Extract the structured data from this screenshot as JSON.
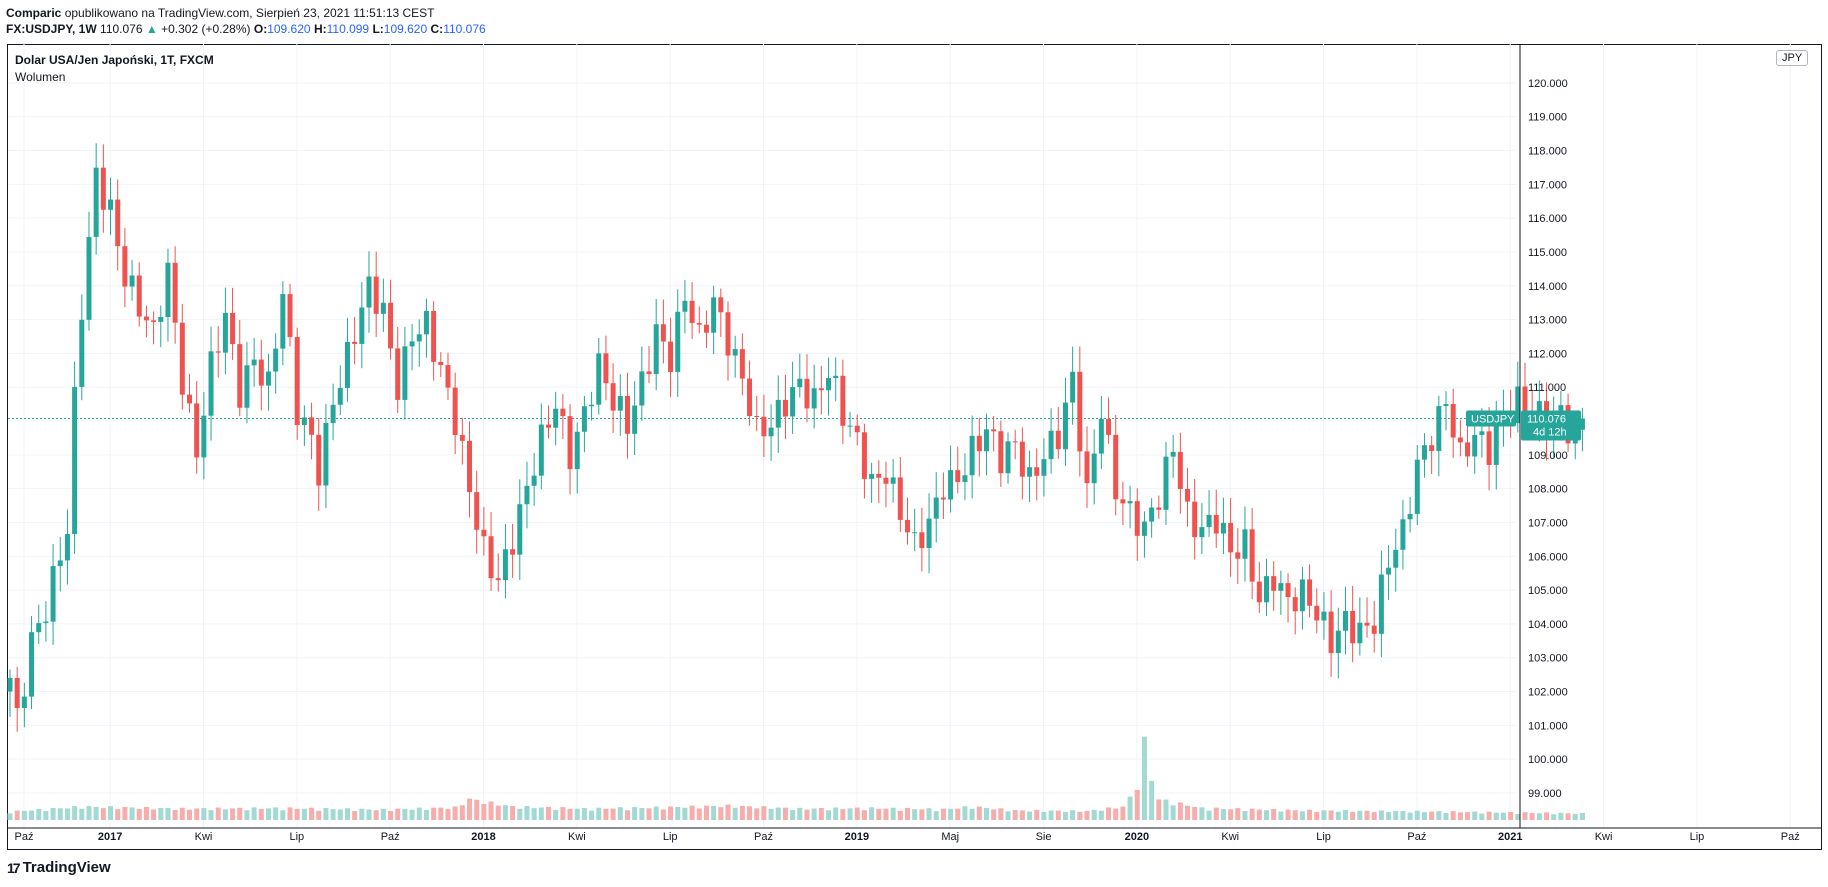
{
  "header": {
    "author": "Comparic",
    "published": "opublikowano na TradingView.com, Sierpień 23, 2021 11:51:13 CEST",
    "symbol": "FX:USDJPY, 1W",
    "last": "110.076",
    "change": "+0.302 (+0.28%)",
    "o_label": "O:",
    "o_value": "109.620",
    "h_label": "H:",
    "h_value": "110.099",
    "l_label": "L:",
    "l_value": "109.620",
    "c_label": "C:",
    "c_value": "110.076"
  },
  "legend": {
    "title": "Dolar USA/Jen Japoński, 1T, FXCM",
    "volume": "Wolumen"
  },
  "currency": "JPY",
  "price_tag": {
    "symbol": "USDJPY",
    "value": "110.076",
    "countdown": "4d 12h"
  },
  "footer": {
    "brand": "TradingView"
  },
  "colors": {
    "up": "#26a69a",
    "down": "#ef5350",
    "up_volume": "#a2d9d3",
    "down_volume": "#f7adab",
    "grid": "#f0f3fa"
  },
  "chart_data": {
    "type": "candlestick",
    "interval": "1W",
    "y_unit": "JPY",
    "ylim": [
      98.2,
      120.5
    ],
    "y_ticks": [
      "120.000",
      "119.000",
      "118.000",
      "117.000",
      "116.000",
      "115.000",
      "114.000",
      "113.000",
      "112.000",
      "111.000",
      "110.000",
      "109.000",
      "108.000",
      "107.000",
      "106.000",
      "105.000",
      "104.000",
      "103.000",
      "102.000",
      "101.000",
      "100.000",
      "99.000"
    ],
    "x_ticks": [
      "Paź",
      "2017",
      "Kwi",
      "Lip",
      "Paź",
      "2018",
      "Kwi",
      "Lip",
      "Paź",
      "2019",
      "Maj",
      "Sie",
      "2020",
      "Kwi",
      "Lip",
      "Paź",
      "2021",
      "Kwi",
      "Lip",
      "Paź"
    ],
    "x_tick_positions": [
      0,
      12,
      25,
      38,
      51,
      64,
      77,
      90,
      103,
      116,
      129,
      142,
      155,
      168,
      181,
      194,
      207,
      220,
      233,
      246
    ],
    "weeks": 260,
    "last_price": 110.076,
    "grid": true,
    "price_anchors": [
      [
        0,
        102.4
      ],
      [
        1,
        101.3
      ],
      [
        3,
        103.7
      ],
      [
        5,
        104.5
      ],
      [
        8,
        106.6
      ],
      [
        9,
        110.4
      ],
      [
        10,
        113.3
      ],
      [
        12,
        117.4
      ],
      [
        14,
        116.4
      ],
      [
        16,
        114.3
      ],
      [
        18,
        113.2
      ],
      [
        20,
        112.4
      ],
      [
        22,
        114.5
      ],
      [
        24,
        111.4
      ],
      [
        26,
        109.2
      ],
      [
        28,
        111.5
      ],
      [
        30,
        112.9
      ],
      [
        32,
        110.8
      ],
      [
        34,
        112.0
      ],
      [
        36,
        111.2
      ],
      [
        38,
        113.8
      ],
      [
        40,
        110.1
      ],
      [
        42,
        109.3
      ],
      [
        43,
        108.5
      ],
      [
        45,
        110.8
      ],
      [
        48,
        112.7
      ],
      [
        50,
        113.8
      ],
      [
        52,
        113.0
      ],
      [
        54,
        111.0
      ],
      [
        56,
        112.8
      ],
      [
        58,
        113.0
      ],
      [
        60,
        111.4
      ],
      [
        62,
        109.8
      ],
      [
        64,
        107.9
      ],
      [
        66,
        106.3
      ],
      [
        68,
        105.5
      ],
      [
        70,
        106.5
      ],
      [
        72,
        107.8
      ],
      [
        74,
        109.3
      ],
      [
        76,
        110.6
      ],
      [
        78,
        109.2
      ],
      [
        80,
        110.3
      ],
      [
        82,
        111.5
      ],
      [
        84,
        110.4
      ],
      [
        86,
        109.9
      ],
      [
        88,
        111.3
      ],
      [
        90,
        112.8
      ],
      [
        92,
        111.8
      ],
      [
        94,
        113.5
      ],
      [
        96,
        112.3
      ],
      [
        98,
        113.7
      ],
      [
        100,
        112.6
      ],
      [
        102,
        111.3
      ],
      [
        104,
        109.5
      ],
      [
        106,
        109.7
      ],
      [
        108,
        110.6
      ],
      [
        110,
        111.3
      ],
      [
        112,
        110.7
      ],
      [
        114,
        111.4
      ],
      [
        116,
        110.0
      ],
      [
        118,
        109.3
      ],
      [
        120,
        108.3
      ],
      [
        122,
        108.7
      ],
      [
        124,
        107.3
      ],
      [
        126,
        106.1
      ],
      [
        128,
        106.8
      ],
      [
        130,
        108.2
      ],
      [
        132,
        108.5
      ],
      [
        134,
        109.2
      ],
      [
        136,
        109.6
      ],
      [
        138,
        108.7
      ],
      [
        140,
        109.3
      ],
      [
        142,
        108.4
      ],
      [
        144,
        109.2
      ],
      [
        146,
        109.5
      ],
      [
        148,
        111.0
      ],
      [
        150,
        107.7
      ],
      [
        152,
        110.5
      ],
      [
        154,
        108.2
      ],
      [
        156,
        107.3
      ],
      [
        158,
        106.6
      ],
      [
        160,
        107.6
      ],
      [
        162,
        109.3
      ],
      [
        164,
        107.4
      ],
      [
        166,
        106.9
      ],
      [
        168,
        107.0
      ],
      [
        170,
        105.9
      ],
      [
        172,
        106.3
      ],
      [
        174,
        104.9
      ],
      [
        176,
        105.6
      ],
      [
        178,
        104.6
      ],
      [
        180,
        104.7
      ],
      [
        182,
        104.2
      ],
      [
        184,
        103.6
      ],
      [
        186,
        104.3
      ],
      [
        188,
        103.8
      ],
      [
        190,
        103.9
      ],
      [
        192,
        105.7
      ],
      [
        194,
        106.7
      ],
      [
        196,
        108.9
      ],
      [
        198,
        109.7
      ],
      [
        200,
        110.5
      ],
      [
        202,
        108.7
      ],
      [
        204,
        109.5
      ],
      [
        206,
        109.3
      ],
      [
        208,
        110.3
      ],
      [
        210,
        110.6
      ],
      [
        212,
        110.1
      ],
      [
        214,
        109.8
      ],
      [
        216,
        110.3
      ],
      [
        218,
        109.6
      ],
      [
        219,
        110.076
      ]
    ],
    "volume_profile": [
      [
        0,
        0.28
      ],
      [
        10,
        0.45
      ],
      [
        24,
        0.38
      ],
      [
        38,
        0.4
      ],
      [
        52,
        0.35
      ],
      [
        62,
        0.42
      ],
      [
        64,
        0.7
      ],
      [
        70,
        0.45
      ],
      [
        80,
        0.38
      ],
      [
        90,
        0.42
      ],
      [
        100,
        0.48
      ],
      [
        110,
        0.38
      ],
      [
        120,
        0.4
      ],
      [
        130,
        0.36
      ],
      [
        134,
        0.45
      ],
      [
        140,
        0.32
      ],
      [
        150,
        0.3
      ],
      [
        155,
        0.45
      ],
      [
        156,
        0.75
      ],
      [
        157,
        1.2
      ],
      [
        158,
        2.6
      ],
      [
        159,
        1.4
      ],
      [
        160,
        0.7
      ],
      [
        166,
        0.4
      ],
      [
        180,
        0.32
      ],
      [
        200,
        0.28
      ],
      [
        219,
        0.22
      ]
    ]
  }
}
